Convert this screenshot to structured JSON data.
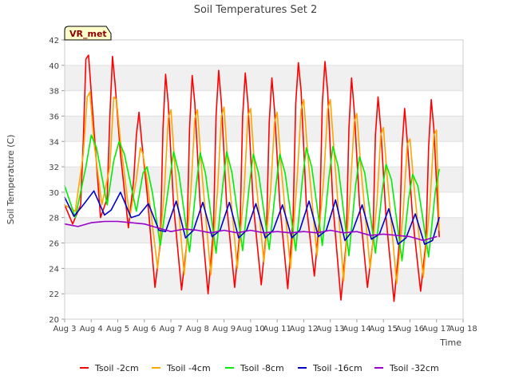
{
  "chart_data": {
    "type": "line",
    "title": "Soil Temperatures Set 2",
    "xlabel": "Time",
    "ylabel": "Soil Temperature (C)",
    "badge": "VR_met",
    "xlim": [
      3,
      18
    ],
    "ylim": [
      20,
      42
    ],
    "x_tick_values": [
      3,
      4,
      5,
      6,
      7,
      8,
      9,
      10,
      11,
      12,
      13,
      14,
      15,
      16,
      17,
      18
    ],
    "x_tick_labels": [
      "Aug 3",
      "Aug 4",
      "Aug 5",
      "Aug 6",
      "Aug 7",
      "Aug 8",
      "Aug 9",
      "Aug 10",
      "Aug 11",
      "Aug 12",
      "Aug 13",
      "Aug 14",
      "Aug 15",
      "Aug 16",
      "Aug 17",
      "Aug 18"
    ],
    "y_ticks": [
      20,
      22,
      24,
      26,
      28,
      30,
      32,
      34,
      36,
      38,
      40,
      42
    ],
    "grid": "horizontal bands",
    "legend_position": "bottom",
    "series": [
      {
        "name": "Tsoil -2cm",
        "color": "#ff0000",
        "x": [
          3.0,
          3.3,
          3.6,
          3.7,
          3.8,
          3.9,
          4.1,
          4.35,
          4.6,
          4.7,
          4.8,
          4.9,
          5.1,
          5.4,
          5.6,
          5.7,
          5.8,
          5.9,
          6.1,
          6.4,
          6.6,
          6.7,
          6.8,
          6.9,
          7.1,
          7.4,
          7.6,
          7.7,
          7.8,
          7.9,
          8.1,
          8.4,
          8.6,
          8.7,
          8.8,
          8.9,
          9.1,
          9.4,
          9.6,
          9.7,
          9.8,
          9.9,
          10.1,
          10.4,
          10.6,
          10.7,
          10.8,
          10.9,
          11.1,
          11.4,
          11.6,
          11.7,
          11.8,
          11.9,
          12.1,
          12.4,
          12.6,
          12.7,
          12.8,
          12.9,
          13.1,
          13.4,
          13.6,
          13.7,
          13.8,
          13.9,
          14.1,
          14.4,
          14.6,
          14.7,
          14.8,
          14.9,
          15.1,
          15.4,
          15.6,
          15.7,
          15.8,
          15.9,
          16.1,
          16.4,
          16.6,
          16.7,
          16.8,
          16.9,
          17.1
        ],
        "y": [
          29.0,
          27.5,
          29.0,
          34.0,
          40.5,
          40.8,
          35.0,
          28.0,
          29.5,
          36.0,
          40.7,
          38.5,
          33.0,
          27.2,
          31.0,
          34.5,
          36.3,
          34.0,
          30.0,
          22.5,
          26.0,
          35.0,
          39.3,
          37.0,
          29.0,
          22.3,
          26.0,
          35.0,
          39.2,
          37.0,
          29.0,
          22.0,
          27.0,
          36.0,
          39.6,
          37.0,
          29.0,
          22.5,
          27.0,
          36.0,
          39.4,
          37.0,
          29.0,
          22.7,
          27.0,
          35.5,
          39.0,
          36.5,
          29.0,
          22.4,
          28.0,
          37.0,
          40.2,
          38.0,
          29.0,
          23.4,
          28.0,
          37.0,
          40.3,
          38.0,
          29.0,
          21.5,
          26.0,
          35.0,
          39.0,
          36.5,
          29.0,
          22.5,
          26.0,
          34.5,
          37.5,
          35.0,
          28.0,
          21.4,
          26.0,
          33.5,
          36.6,
          34.0,
          28.0,
          22.2,
          26.0,
          33.5,
          37.3,
          35.0,
          26.5
        ]
      },
      {
        "name": "Tsoil -4cm",
        "color": "#ffa500",
        "x": [
          3.0,
          3.4,
          3.7,
          3.85,
          3.95,
          4.1,
          4.4,
          4.7,
          4.85,
          4.95,
          5.1,
          5.45,
          5.7,
          5.85,
          5.95,
          6.1,
          6.5,
          6.75,
          6.9,
          7.0,
          7.15,
          7.5,
          7.75,
          7.9,
          8.0,
          8.15,
          8.5,
          8.75,
          8.9,
          9.0,
          9.15,
          9.5,
          9.75,
          9.9,
          10.0,
          10.15,
          10.5,
          10.75,
          10.9,
          11.0,
          11.15,
          11.5,
          11.75,
          11.9,
          12.0,
          12.15,
          12.5,
          12.75,
          12.9,
          13.0,
          13.15,
          13.5,
          13.75,
          13.9,
          14.0,
          14.15,
          14.5,
          14.75,
          14.9,
          15.0,
          15.15,
          15.5,
          15.75,
          15.9,
          16.0,
          16.15,
          16.5,
          16.75,
          16.9,
          17.0,
          17.1
        ],
        "y": [
          29.0,
          28.5,
          33.0,
          37.5,
          37.9,
          34.0,
          29.0,
          32.0,
          37.5,
          37.3,
          34.0,
          28.0,
          31.0,
          33.5,
          33.0,
          31.0,
          24.0,
          30.0,
          35.8,
          36.5,
          32.0,
          23.5,
          30.0,
          35.8,
          36.5,
          32.0,
          23.5,
          30.0,
          36.0,
          36.7,
          32.0,
          24.0,
          30.0,
          36.0,
          36.6,
          32.0,
          24.5,
          30.0,
          35.5,
          36.3,
          32.0,
          24.0,
          31.0,
          36.5,
          37.3,
          33.0,
          25.0,
          31.0,
          36.5,
          37.3,
          33.0,
          23.0,
          30.0,
          35.5,
          36.2,
          32.0,
          24.0,
          29.0,
          34.5,
          35.1,
          31.0,
          22.8,
          28.5,
          33.8,
          34.2,
          30.5,
          23.3,
          29.0,
          34.5,
          34.9,
          27.0
        ]
      },
      {
        "name": "Tsoil -8cm",
        "color": "#00ee00",
        "x": [
          3.0,
          3.4,
          3.8,
          4.0,
          4.2,
          4.6,
          4.85,
          5.05,
          5.25,
          5.7,
          5.95,
          6.1,
          6.3,
          6.6,
          6.95,
          7.1,
          7.3,
          7.7,
          7.95,
          8.1,
          8.3,
          8.7,
          8.95,
          9.1,
          9.3,
          9.7,
          9.95,
          10.1,
          10.3,
          10.7,
          10.95,
          11.1,
          11.3,
          11.7,
          11.95,
          12.1,
          12.3,
          12.7,
          12.95,
          13.1,
          13.3,
          13.7,
          13.95,
          14.1,
          14.3,
          14.7,
          14.95,
          15.1,
          15.3,
          15.7,
          15.95,
          16.1,
          16.3,
          16.7,
          16.95,
          17.1
        ],
        "y": [
          30.5,
          28.0,
          32.0,
          34.5,
          33.5,
          29.0,
          32.5,
          34.0,
          33.0,
          28.5,
          31.5,
          32.0,
          30.0,
          25.8,
          31.0,
          33.2,
          31.5,
          25.3,
          30.5,
          33.1,
          31.5,
          25.2,
          30.5,
          33.2,
          31.5,
          25.4,
          30.5,
          33.0,
          31.5,
          25.5,
          30.5,
          33.0,
          31.5,
          25.4,
          31.0,
          33.5,
          32.0,
          25.8,
          31.2,
          33.6,
          32.0,
          25.0,
          30.5,
          32.8,
          31.5,
          25.2,
          30.0,
          32.2,
          31.0,
          24.6,
          29.5,
          31.4,
          30.5,
          24.9,
          30.0,
          31.8
        ]
      },
      {
        "name": "Tsoil -16cm",
        "color": "#0000cc",
        "x": [
          3.0,
          3.35,
          3.7,
          4.1,
          4.5,
          4.75,
          5.1,
          5.5,
          5.8,
          6.15,
          6.55,
          6.8,
          7.2,
          7.55,
          7.85,
          8.2,
          8.55,
          8.85,
          9.2,
          9.55,
          9.85,
          10.2,
          10.55,
          10.85,
          11.2,
          11.55,
          11.85,
          12.2,
          12.55,
          12.85,
          13.2,
          13.55,
          13.85,
          14.2,
          14.55,
          14.85,
          15.2,
          15.55,
          15.85,
          16.2,
          16.55,
          16.85,
          17.1
        ],
        "y": [
          29.6,
          28.1,
          29.0,
          30.1,
          28.2,
          28.6,
          30.0,
          28.0,
          28.2,
          29.1,
          27.0,
          26.9,
          29.3,
          26.4,
          27.0,
          29.2,
          26.5,
          27.0,
          29.2,
          26.4,
          27.0,
          29.1,
          26.4,
          27.0,
          29.0,
          26.4,
          27.0,
          29.3,
          26.5,
          27.0,
          29.4,
          26.2,
          27.0,
          29.0,
          26.3,
          26.7,
          28.7,
          25.9,
          26.4,
          28.3,
          25.9,
          26.2,
          28.0
        ]
      },
      {
        "name": "Tsoil -32cm",
        "color": "#9900cc",
        "x": [
          3.0,
          3.5,
          4.0,
          4.5,
          5.0,
          5.5,
          6.0,
          6.5,
          7.0,
          7.5,
          8.0,
          8.5,
          9.0,
          9.5,
          10.0,
          10.5,
          11.0,
          11.5,
          12.0,
          12.5,
          13.0,
          13.5,
          14.0,
          14.5,
          15.0,
          15.5,
          16.0,
          16.5,
          17.0
        ],
        "y": [
          27.5,
          27.3,
          27.6,
          27.7,
          27.7,
          27.6,
          27.5,
          27.2,
          26.9,
          27.1,
          27.0,
          26.8,
          27.0,
          26.8,
          27.0,
          26.8,
          26.9,
          26.8,
          26.9,
          26.8,
          27.0,
          26.8,
          26.9,
          26.6,
          26.7,
          26.6,
          26.5,
          26.2,
          26.5
        ]
      }
    ]
  }
}
